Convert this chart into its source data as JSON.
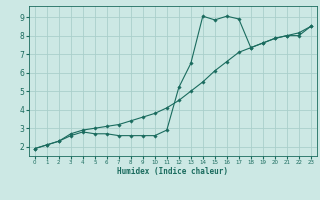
{
  "title": "",
  "xlabel": "Humidex (Indice chaleur)",
  "ylabel": "",
  "background_color": "#cce8e4",
  "grid_color": "#aacfcb",
  "line_color": "#1a6b5e",
  "xlim": [
    -0.5,
    23.5
  ],
  "ylim": [
    1.5,
    9.6
  ],
  "xticks": [
    0,
    1,
    2,
    3,
    4,
    5,
    6,
    7,
    8,
    9,
    10,
    11,
    12,
    13,
    14,
    15,
    16,
    17,
    18,
    19,
    20,
    21,
    22,
    23
  ],
  "yticks": [
    2,
    3,
    4,
    5,
    6,
    7,
    8,
    9
  ],
  "line1_x": [
    0,
    1,
    2,
    3,
    4,
    5,
    6,
    7,
    8,
    9,
    10,
    11,
    12,
    13,
    14,
    15,
    16,
    17,
    18,
    19,
    20,
    21,
    22,
    23
  ],
  "line1_y": [
    1.9,
    2.1,
    2.3,
    2.6,
    2.8,
    2.7,
    2.7,
    2.6,
    2.6,
    2.6,
    2.6,
    2.9,
    5.2,
    6.5,
    9.05,
    8.85,
    9.05,
    8.9,
    7.35,
    7.6,
    7.85,
    8.0,
    8.0,
    8.5
  ],
  "line2_x": [
    0,
    1,
    2,
    3,
    4,
    5,
    6,
    7,
    8,
    9,
    10,
    11,
    12,
    13,
    14,
    15,
    16,
    17,
    18,
    19,
    20,
    21,
    22,
    23
  ],
  "line2_y": [
    1.9,
    2.1,
    2.3,
    2.7,
    2.9,
    3.0,
    3.1,
    3.2,
    3.4,
    3.6,
    3.8,
    4.1,
    4.5,
    5.0,
    5.5,
    6.1,
    6.6,
    7.1,
    7.35,
    7.6,
    7.85,
    8.0,
    8.15,
    8.5
  ]
}
